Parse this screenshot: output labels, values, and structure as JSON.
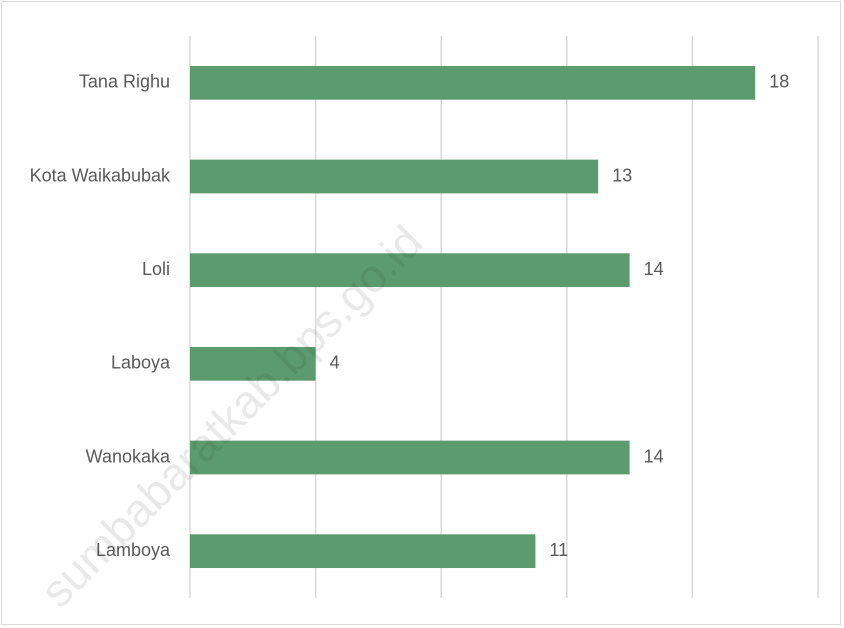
{
  "chart_data": {
    "type": "bar",
    "orientation": "horizontal",
    "categories": [
      "Tana Righu",
      "Kota Waikabubak",
      "Loli",
      "Laboya",
      "Wanokaka",
      "Lamboya"
    ],
    "values": [
      18,
      13,
      14,
      4,
      14,
      11
    ],
    "xlim": [
      0,
      20
    ],
    "grid": true,
    "legend": "none",
    "bar_color": "#5b9b6e",
    "grid_color": "#d9d9d9"
  },
  "watermark": {
    "text": "sumbabaratkab.bps.go.id"
  }
}
